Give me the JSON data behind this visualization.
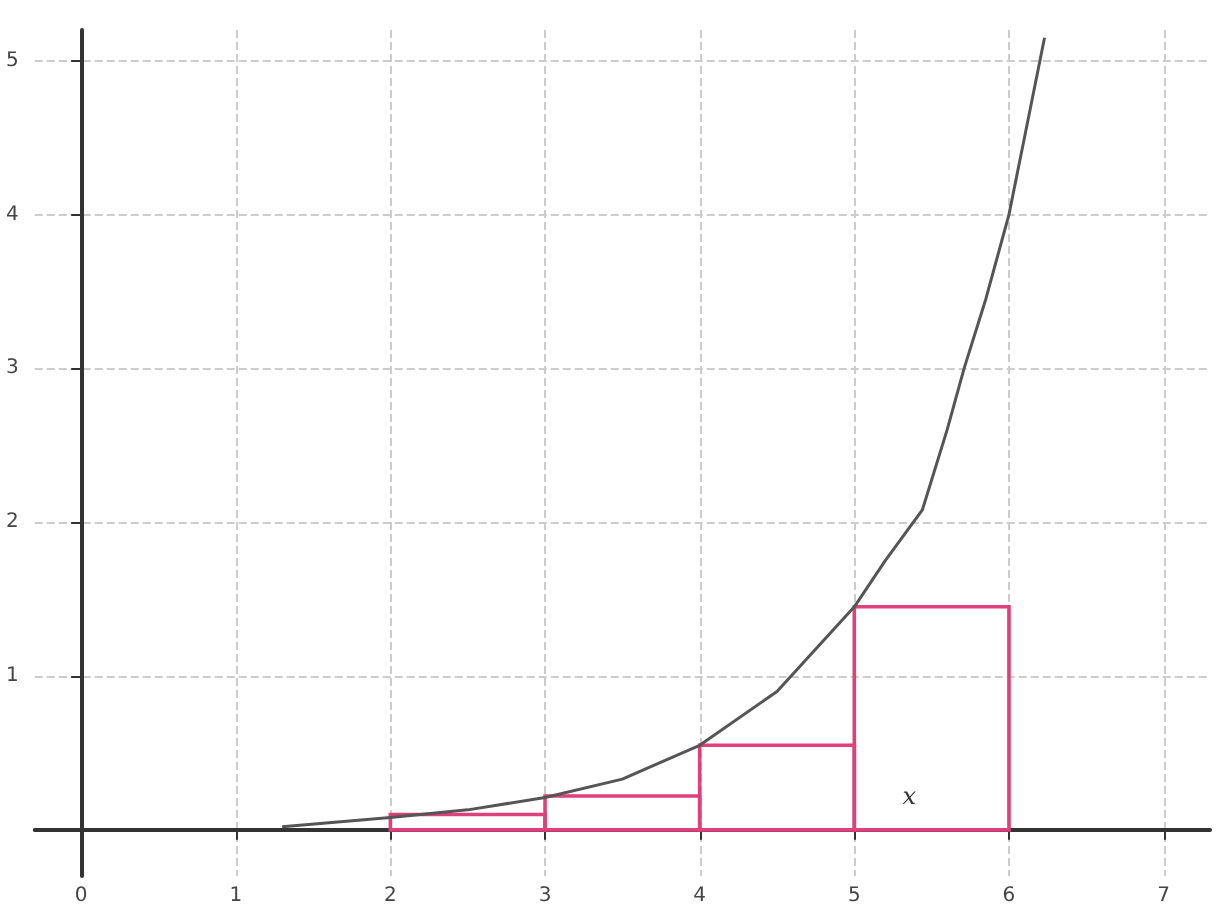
{
  "chart_data": {
    "type": "line",
    "xlim": [
      -0.3,
      7.3
    ],
    "ylim": [
      -0.3,
      5.2
    ],
    "xticks": [
      0,
      1,
      2,
      3,
      4,
      5,
      6,
      7
    ],
    "yticks": [
      1,
      2,
      3,
      4,
      5
    ],
    "grid": true,
    "marker": "none",
    "line_style": "solid",
    "annotations": [
      "x"
    ],
    "series": [
      {
        "color": "#555555",
        "x": [
          1.3,
          2,
          2.5,
          3,
          3.5,
          4,
          4.5,
          5,
          5.2,
          5.44,
          5.6,
          5.71,
          5.85,
          6,
          6.1,
          6.23
        ],
        "values": [
          0.02,
          0.08,
          0.13,
          0.21,
          0.33,
          0.55,
          0.9,
          1.45,
          1.75,
          2.08,
          2.6,
          3,
          3.45,
          4,
          4.5,
          5.15
        ]
      },
      {
        "type": "bar",
        "color": "#e0407a",
        "x": [
          2.5,
          3.5,
          4.5,
          5.5
        ],
        "values": [
          0.1,
          0.22,
          0.55,
          1.45
        ]
      }
    ]
  }
}
